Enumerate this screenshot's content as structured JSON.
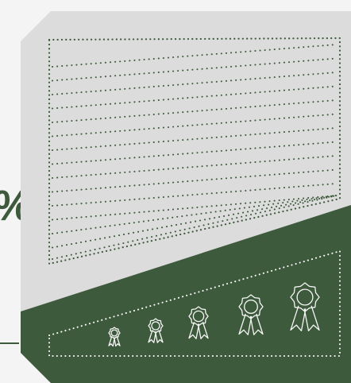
{
  "edge_text": "%",
  "colors": {
    "background": "#f4f4f4",
    "panel": "#dcdcdc",
    "accent": "#3e5a3c",
    "dots_dark": "#3e5a3c",
    "dots_light": "#ffffff",
    "medal_stroke": "#ffffff"
  },
  "medals": [
    {
      "name": "medal-icon-1"
    },
    {
      "name": "medal-icon-2"
    },
    {
      "name": "medal-icon-3"
    },
    {
      "name": "medal-icon-4"
    },
    {
      "name": "medal-icon-5"
    }
  ]
}
